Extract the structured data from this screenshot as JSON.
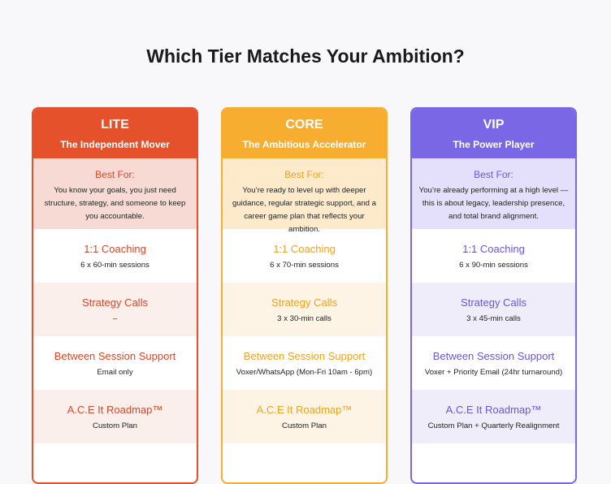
{
  "title": "Which Tier Matches Your Ambition?",
  "tiers": [
    {
      "name": "LITE",
      "subtitle": "The Independent Mover",
      "best_for_label": "Best For:",
      "best_for": "You know your goals, you just need structure, strategy, and someone to keep you accountable.",
      "features": [
        {
          "title": "1:1 Coaching",
          "detail": "6 x 60-min sessions"
        },
        {
          "title": "Strategy Calls",
          "detail": "–"
        },
        {
          "title": "Between Session Support",
          "detail": "Email only"
        },
        {
          "title": "A.C.E It Roadmap™",
          "detail": "Custom Plan"
        }
      ]
    },
    {
      "name": "CORE",
      "subtitle": "The Ambitious Accelerator",
      "best_for_label": "Best For:",
      "best_for": "You’re ready to level up with deeper guidance, regular strategic support, and a career game plan that reflects your ambition.",
      "features": [
        {
          "title": "1:1 Coaching",
          "detail": "6 x 70-min sessions"
        },
        {
          "title": "Strategy Calls",
          "detail": "3 x 30-min calls"
        },
        {
          "title": "Between Session Support",
          "detail": "Voxer/WhatsApp (Mon-Fri 10am - 6pm)"
        },
        {
          "title": "A.C.E It Roadmap™",
          "detail": "Custom Plan"
        }
      ]
    },
    {
      "name": "VIP",
      "subtitle": "The Power Player",
      "best_for_label": "Best For:",
      "best_for": "You’re already performing at a high level — this is about legacy, leadership presence, and total brand alignment.",
      "features": [
        {
          "title": "1:1 Coaching",
          "detail": "6 x 90-min sessions"
        },
        {
          "title": "Strategy Calls",
          "detail": "3 x 45-min calls"
        },
        {
          "title": "Between Session Support",
          "detail": "Voxer + Priority Email (24hr turnaround)"
        },
        {
          "title": "A.C.E It Roadmap™",
          "detail": "Custom Plan + Quarterly Realignment"
        }
      ]
    }
  ]
}
